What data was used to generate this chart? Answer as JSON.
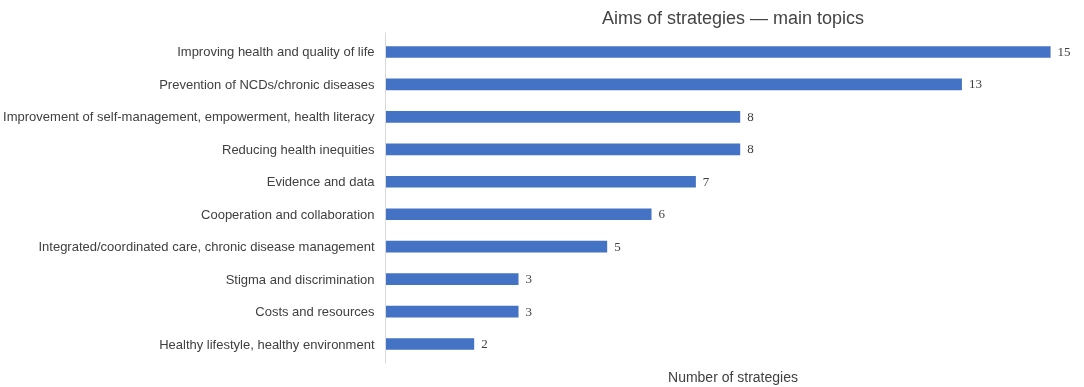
{
  "chart_data": {
    "type": "bar",
    "orientation": "horizontal",
    "title": "Aims of strategies — main topics",
    "xlabel": "Number of strategies",
    "categories": [
      "Improving health and quality of life",
      "Prevention of NCDs/chronic diseases",
      "Improvement of self-management, empowerment, health literacy",
      "Reducing health inequities",
      "Evidence and data",
      "Cooperation and collaboration",
      "Integrated/coordinated care, chronic disease management",
      "Stigma and discrimination",
      "Costs and resources",
      "Healthy lifestyle, healthy environment"
    ],
    "values": [
      15,
      13,
      8,
      8,
      7,
      6,
      5,
      3,
      3,
      2
    ],
    "color": "#4472c4",
    "data_labels": true,
    "grid": false,
    "tick_labels": "y"
  }
}
